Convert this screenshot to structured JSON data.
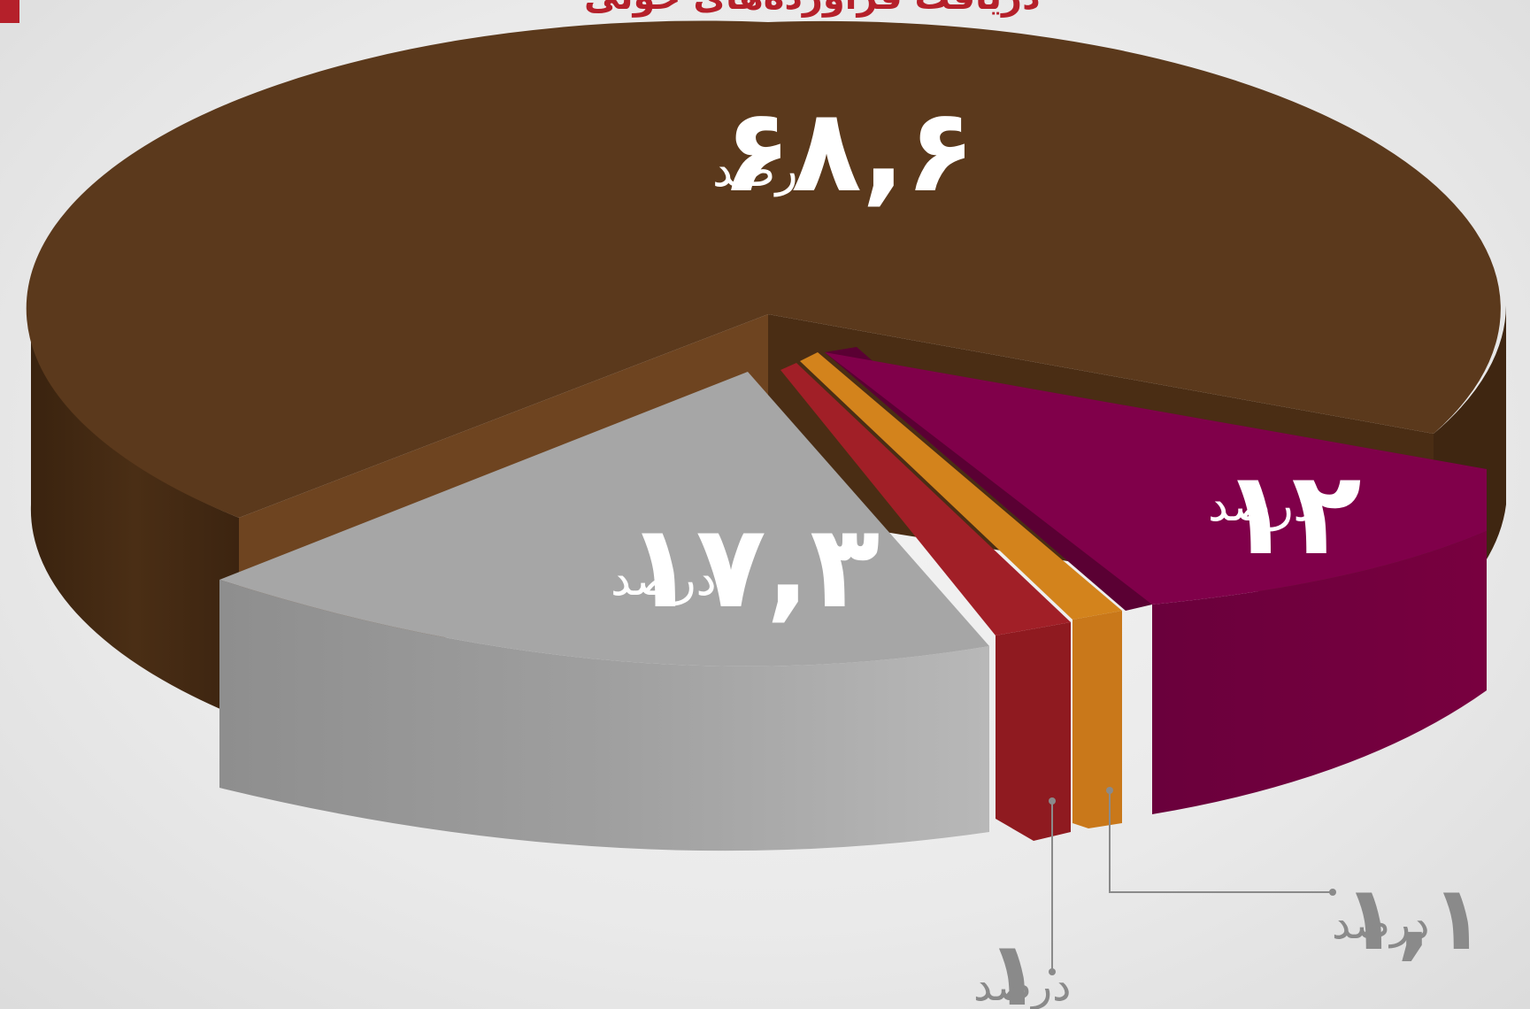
{
  "chart_data": {
    "type": "pie",
    "title": "دریافت فرآورده‌های خونی",
    "unit": "درصد",
    "slices": [
      {
        "value_label": "۶۸,۶",
        "value": 68.6,
        "color": "#5b391c"
      },
      {
        "value_label": "۱۲",
        "value": 12,
        "color": "#80004a"
      },
      {
        "value_label": "۱,۱",
        "value": 1.1,
        "color": "#d3831c"
      },
      {
        "value_label": "۱",
        "value": 1,
        "color": "#a11f27"
      },
      {
        "value_label": "۱۷,۳",
        "value": 17.3,
        "color": "#a6a6a6"
      }
    ]
  },
  "colors": {
    "title_accent": "#b5202a",
    "label_light": "#ffffff",
    "label_dark": "#8a8a8a",
    "leader_line": "#8a8a8a"
  }
}
